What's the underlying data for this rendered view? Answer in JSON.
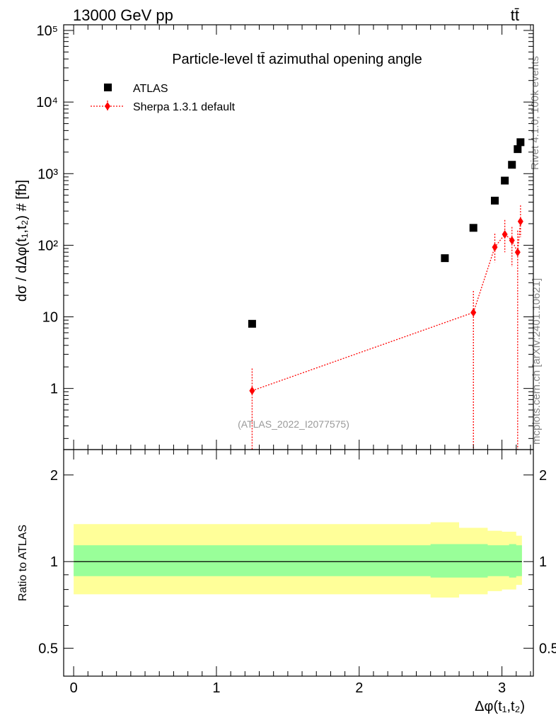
{
  "header": {
    "energy_label": "13000 GeV pp",
    "process_label": "tt̄"
  },
  "side_labels": {
    "rivet": "Rivet 4.1.0,  100k events",
    "mcplots": "mcplots.cern.ch [arXiv:2401.10621]"
  },
  "chart_data": [
    {
      "type": "scatter",
      "title": "Particle-level tt̄ azimuthal opening angle",
      "analysis_tag": "(ATLAS_2022_I2077575)",
      "xlabel": "Δφ(t₁,t₂)",
      "ylabel": "dσ / dΔφ(t₁,t₂) # [fb]",
      "yscale": "log",
      "xlim": [
        -0.07,
        3.22
      ],
      "ylim": [
        0.14,
        120000
      ],
      "y_tick_labels": [
        "1",
        "10",
        "10²",
        "10³",
        "10⁴",
        "10⁵"
      ],
      "x_tick_labels": [
        "0",
        "1",
        "2",
        "3"
      ],
      "legend": {
        "placement": "top-left",
        "entries": [
          "ATLAS",
          "Sherpa 1.3.1 default"
        ]
      },
      "series": [
        {
          "name": "ATLAS",
          "color": "#000000",
          "marker": "square",
          "x": [
            1.25,
            2.6,
            2.8,
            2.95,
            3.02,
            3.07,
            3.11,
            3.13
          ],
          "y": [
            8.0,
            66,
            175,
            420,
            800,
            1330,
            2200,
            2750
          ]
        },
        {
          "name": "Sherpa 1.3.1 default",
          "color": "#ff0000",
          "marker": "diamond",
          "x": [
            1.25,
            2.8,
            2.95,
            3.02,
            3.07,
            3.11,
            3.13
          ],
          "y": [
            0.93,
            11.5,
            94,
            142,
            117,
            80,
            215
          ],
          "y_low": [
            0.01,
            0.01,
            58,
            80,
            50,
            0.01,
            130
          ],
          "y_high": [
            1.9,
            23,
            145,
            225,
            180,
            160,
            360
          ]
        }
      ]
    },
    {
      "type": "area",
      "ylabel": "Ratio to ATLAS",
      "yscale": "log",
      "ylim": [
        0.4,
        2.45
      ],
      "y_tick_labels": [
        "0.5",
        "1",
        "2"
      ],
      "reference_line": 1,
      "bands": {
        "edges": [
          0.0,
          2.5,
          2.7,
          2.9,
          3.0,
          3.05,
          3.1,
          3.14
        ],
        "inner_low": [
          0.89,
          0.88,
          0.88,
          0.89,
          0.89,
          0.88,
          0.89
        ],
        "inner_high": [
          1.14,
          1.15,
          1.15,
          1.14,
          1.14,
          1.15,
          1.14
        ],
        "outer_low": [
          0.77,
          0.75,
          0.77,
          0.79,
          0.8,
          0.8,
          0.83
        ],
        "outer_high": [
          1.35,
          1.37,
          1.31,
          1.28,
          1.27,
          1.27,
          1.23
        ],
        "inner_color": "#99ff99",
        "outer_color": "#ffff99"
      }
    }
  ]
}
